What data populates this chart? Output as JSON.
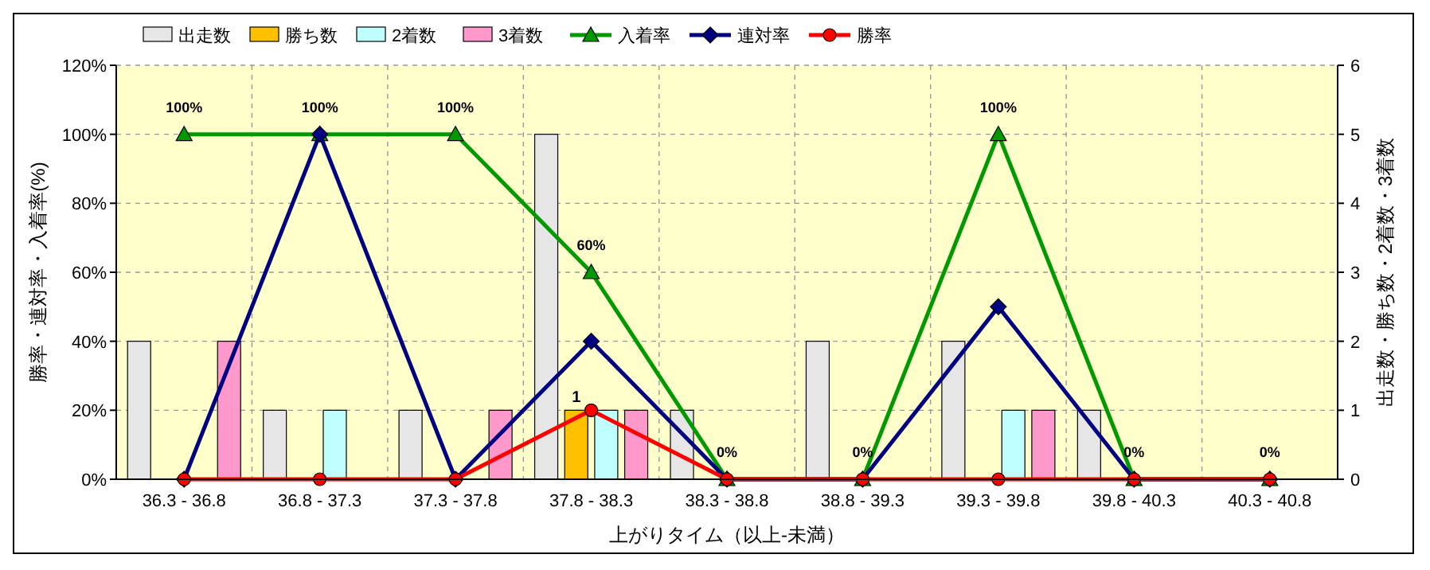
{
  "chart_data": {
    "type": "bar",
    "xlabel": "上がりタイム（以上-未満）",
    "ylabel": "勝率・連対率・入着率(%)",
    "y2label": "出走数・勝ち数・2着数・3着数",
    "categories": [
      "36.3 - 36.8",
      "36.8 - 37.3",
      "37.3 - 37.8",
      "37.8 - 38.3",
      "38.3 - 38.8",
      "38.8 - 39.3",
      "39.3 - 39.8",
      "39.8 - 40.3",
      "40.3 - 40.8"
    ],
    "ylim": [
      0,
      120
    ],
    "yticks": [
      {
        "value": 0,
        "label": "0%"
      },
      {
        "value": 20,
        "label": "20%"
      },
      {
        "value": 40,
        "label": "40%"
      },
      {
        "value": 60,
        "label": "60%"
      },
      {
        "value": 80,
        "label": "80%"
      },
      {
        "value": 100,
        "label": "100%"
      },
      {
        "value": 120,
        "label": "120%"
      }
    ],
    "y2lim": [
      0,
      6
    ],
    "y2ticks": [
      0,
      1,
      2,
      3,
      4,
      5,
      6
    ],
    "grid": true,
    "legend": "top",
    "series": [
      {
        "name": "出走数",
        "axis": "y2",
        "color": "#e6e6e6",
        "values": [
          2,
          1,
          1,
          5,
          1,
          2,
          2,
          1,
          0
        ]
      },
      {
        "name": "勝ち数",
        "axis": "y2",
        "color": "#ffc000",
        "values": [
          0,
          0,
          0,
          1,
          0,
          0,
          0,
          0,
          0
        ],
        "value_labels": [
          null,
          null,
          null,
          "1",
          null,
          null,
          null,
          null,
          null
        ]
      },
      {
        "name": "2着数",
        "axis": "y2",
        "color": "#c0ffff",
        "values": [
          0,
          1,
          0,
          1,
          0,
          0,
          1,
          0,
          0
        ]
      },
      {
        "name": "3着数",
        "axis": "y2",
        "color": "#ff99cc",
        "values": [
          2,
          0,
          1,
          1,
          0,
          0,
          1,
          0,
          0
        ]
      },
      {
        "name": "入着率",
        "type": "line",
        "color": "#009900",
        "marker": "triangle",
        "values": [
          100,
          100,
          100,
          60,
          0,
          0,
          100,
          0,
          0
        ],
        "value_labels": [
          "100%",
          "100%",
          "100%",
          "60%",
          "0%",
          "0%",
          "100%",
          "0%",
          "0%"
        ]
      },
      {
        "name": "連対率",
        "type": "line",
        "color": "#000080",
        "marker": "diamond",
        "values": [
          0,
          100,
          0,
          40,
          0,
          0,
          50,
          0,
          0
        ]
      },
      {
        "name": "勝率",
        "type": "line",
        "color": "#ff0000",
        "marker": "circle",
        "values": [
          0,
          0,
          0,
          20,
          0,
          0,
          0,
          0,
          0
        ]
      }
    ]
  }
}
